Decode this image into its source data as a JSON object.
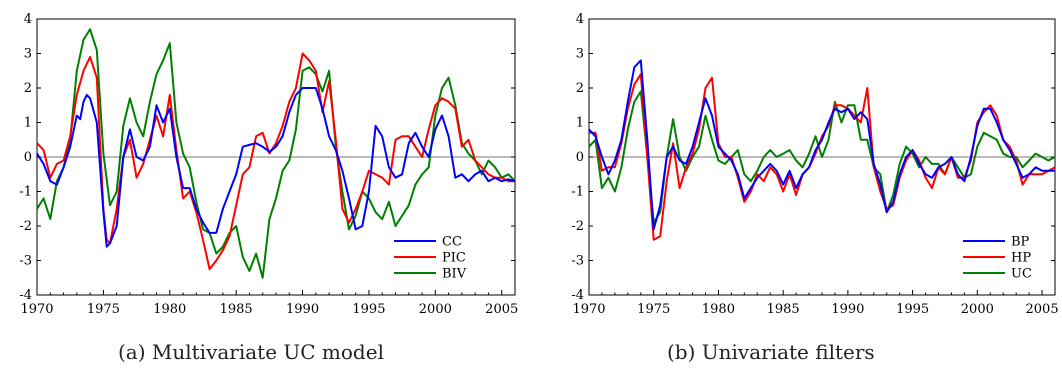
{
  "captions": [
    "(a)  Multivariate UC model",
    "(b)  Univariate filters"
  ],
  "chart_data": [
    {
      "type": "line",
      "xlim": [
        1970,
        2006
      ],
      "ylim": [
        -4,
        4
      ],
      "xticks": [
        1970,
        1975,
        1980,
        1985,
        1990,
        1995,
        2000,
        2005
      ],
      "yticks": [
        4,
        3,
        2,
        1,
        0,
        -1,
        -2,
        -3,
        -4
      ],
      "zero_line": true,
      "grid": false,
      "legend_position": "bottom-right",
      "series": [
        {
          "name": "CC",
          "color": "#0000ff",
          "x": [
            1970,
            1970.5,
            1971,
            1971.5,
            1972,
            1972.5,
            1973,
            1973.25,
            1973.5,
            1973.75,
            1974,
            1974.5,
            1975,
            1975.25,
            1975.5,
            1976,
            1976.5,
            1977,
            1977.5,
            1978,
            1978.5,
            1979,
            1979.5,
            1980,
            1980.5,
            1981,
            1981.5,
            1982,
            1982.5,
            1983,
            1983.5,
            1984,
            1984.5,
            1985,
            1985.5,
            1986,
            1986.5,
            1987,
            1987.5,
            1988,
            1988.5,
            1989,
            1989.5,
            1990,
            1990.5,
            1991,
            1991.5,
            1992,
            1992.5,
            1993,
            1993.5,
            1994,
            1994.5,
            1995,
            1995.5,
            1996,
            1996.5,
            1997,
            1997.5,
            1998,
            1998.5,
            1999,
            1999.5,
            2000,
            2000.5,
            2001,
            2001.5,
            2002,
            2002.5,
            2003,
            2003.5,
            2004,
            2004.5,
            2005,
            2005.5,
            2006
          ],
          "y": [
            0.1,
            -0.2,
            -0.7,
            -0.8,
            -0.3,
            0.3,
            1.2,
            1.1,
            1.6,
            1.8,
            1.7,
            1.0,
            -1.6,
            -2.6,
            -2.5,
            -2.0,
            0.0,
            0.8,
            0.0,
            -0.1,
            0.3,
            1.5,
            1.0,
            1.4,
            0.0,
            -0.9,
            -0.9,
            -1.5,
            -1.9,
            -2.2,
            -2.2,
            -1.5,
            -1.0,
            -0.5,
            0.3,
            0.35,
            0.4,
            0.3,
            0.15,
            0.3,
            0.6,
            1.3,
            1.8,
            2.0,
            2.0,
            2.0,
            1.4,
            0.6,
            0.2,
            -0.4,
            -1.2,
            -2.1,
            -2.0,
            -1.0,
            0.9,
            0.6,
            -0.3,
            -0.6,
            -0.5,
            0.4,
            0.7,
            0.3,
            0.0,
            0.8,
            1.2,
            0.6,
            -0.6,
            -0.5,
            -0.7,
            -0.5,
            -0.4,
            -0.7,
            -0.6,
            -0.7,
            -0.65,
            -0.7
          ]
        },
        {
          "name": "PIC",
          "color": "#ff0000",
          "x": [
            1970,
            1970.5,
            1971,
            1971.5,
            1972,
            1972.5,
            1973,
            1973.5,
            1974,
            1974.5,
            1975,
            1975.25,
            1975.5,
            1976,
            1976.5,
            1977,
            1977.5,
            1978,
            1978.5,
            1979,
            1979.5,
            1980,
            1980.5,
            1981,
            1981.5,
            1982,
            1982.5,
            1983,
            1983.5,
            1984,
            1984.5,
            1985,
            1985.5,
            1986,
            1986.5,
            1987,
            1987.5,
            1988,
            1988.5,
            1989,
            1989.5,
            1990,
            1990.5,
            1991,
            1991.5,
            1992,
            1992.5,
            1993,
            1993.5,
            1994,
            1994.5,
            1995,
            1995.5,
            1996,
            1996.5,
            1997,
            1997.5,
            1998,
            1998.5,
            1999,
            1999.5,
            2000,
            2000.5,
            2001,
            2001.5,
            2002,
            2002.5,
            2003,
            2003.5,
            2004,
            2004.5,
            2005,
            2005.5,
            2006
          ],
          "y": [
            0.4,
            0.2,
            -0.6,
            -0.2,
            -0.1,
            0.6,
            1.8,
            2.5,
            2.9,
            2.3,
            -1.5,
            -2.4,
            -2.5,
            -1.5,
            0.0,
            0.5,
            -0.6,
            -0.2,
            0.5,
            1.2,
            0.6,
            1.8,
            0.2,
            -1.2,
            -1.0,
            -1.6,
            -2.4,
            -3.25,
            -3.0,
            -2.7,
            -2.3,
            -1.4,
            -0.5,
            -0.3,
            0.6,
            0.7,
            0.1,
            0.4,
            0.9,
            1.6,
            2.0,
            3.0,
            2.8,
            2.5,
            1.3,
            2.2,
            0.5,
            -1.5,
            -1.9,
            -1.5,
            -1.0,
            -0.4,
            -0.5,
            -0.6,
            -0.8,
            0.5,
            0.6,
            0.6,
            0.3,
            0.0,
            0.8,
            1.5,
            1.7,
            1.6,
            1.4,
            0.3,
            0.5,
            -0.1,
            -0.3,
            -0.5,
            -0.6,
            -0.6,
            -0.7,
            -0.7
          ]
        },
        {
          "name": "BIV",
          "color": "#008000",
          "x": [
            1970,
            1970.5,
            1971,
            1971.5,
            1972,
            1972.5,
            1973,
            1973.5,
            1974,
            1974.5,
            1975,
            1975.5,
            1976,
            1976.5,
            1977,
            1977.5,
            1978,
            1978.5,
            1979,
            1979.5,
            1980,
            1980.5,
            1981,
            1981.5,
            1982,
            1982.5,
            1983,
            1983.5,
            1984,
            1984.5,
            1985,
            1985.5,
            1986,
            1986.5,
            1987,
            1987.5,
            1988,
            1988.5,
            1989,
            1989.5,
            1990,
            1990.5,
            1991,
            1991.5,
            1992,
            1992.5,
            1993,
            1993.5,
            1994,
            1994.5,
            1995,
            1995.5,
            1996,
            1996.5,
            1997,
            1997.5,
            1998,
            1998.5,
            1999,
            1999.5,
            2000,
            2000.5,
            2001,
            2001.5,
            2002,
            2002.5,
            2003,
            2003.5,
            2004,
            2004.5,
            2005,
            2005.5,
            2006
          ],
          "y": [
            -1.5,
            -1.2,
            -1.8,
            -0.7,
            -0.3,
            0.5,
            2.5,
            3.4,
            3.7,
            3.1,
            0.1,
            -1.4,
            -1.0,
            0.9,
            1.7,
            1.0,
            0.6,
            1.6,
            2.4,
            2.8,
            3.3,
            1.0,
            0.1,
            -0.3,
            -1.3,
            -2.1,
            -2.2,
            -2.8,
            -2.6,
            -2.2,
            -2.0,
            -2.9,
            -3.3,
            -2.8,
            -3.5,
            -1.8,
            -1.2,
            -0.4,
            -0.1,
            0.8,
            2.5,
            2.6,
            2.4,
            1.9,
            2.5,
            0.3,
            -1.0,
            -2.1,
            -1.7,
            -1.0,
            -1.2,
            -1.6,
            -1.8,
            -1.3,
            -2.0,
            -1.7,
            -1.4,
            -0.8,
            -0.5,
            -0.3,
            1.2,
            2.0,
            2.3,
            1.5,
            0.4,
            0.1,
            -0.1,
            -0.5,
            -0.1,
            -0.3,
            -0.6,
            -0.5,
            -0.7
          ]
        }
      ]
    },
    {
      "type": "line",
      "xlim": [
        1970,
        2006
      ],
      "ylim": [
        -4,
        4
      ],
      "xticks": [
        1970,
        1975,
        1980,
        1985,
        1990,
        1995,
        2000,
        2005
      ],
      "yticks": [
        4,
        3,
        2,
        1,
        0,
        -1,
        -2,
        -3,
        -4
      ],
      "zero_line": true,
      "grid": false,
      "legend_position": "bottom-right",
      "series": [
        {
          "name": "BP",
          "color": "#0000ff",
          "x": [
            1970,
            1970.5,
            1971,
            1971.5,
            1972,
            1972.5,
            1973,
            1973.5,
            1974,
            1974.5,
            1975,
            1975.5,
            1976,
            1976.5,
            1977,
            1977.5,
            1978,
            1978.5,
            1979,
            1979.5,
            1980,
            1980.5,
            1981,
            1981.5,
            1982,
            1982.5,
            1983,
            1983.5,
            1984,
            1984.5,
            1985,
            1985.5,
            1986,
            1986.5,
            1987,
            1987.5,
            1988,
            1988.5,
            1989,
            1989.5,
            1990,
            1990.5,
            1991,
            1991.5,
            1992,
            1992.5,
            1993,
            1993.5,
            1994,
            1994.5,
            1995,
            1995.5,
            1996,
            1996.5,
            1997,
            1997.5,
            1998,
            1998.5,
            1999,
            1999.5,
            2000,
            2000.5,
            2001,
            2001.5,
            2002,
            2002.5,
            2003,
            2003.5,
            2004,
            2004.5,
            2005,
            2005.5,
            2006
          ],
          "y": [
            0.8,
            0.6,
            0.0,
            -0.5,
            -0.1,
            0.5,
            1.6,
            2.6,
            2.8,
            0.5,
            -2.1,
            -1.4,
            0.0,
            0.3,
            -0.1,
            -0.2,
            0.3,
            1.0,
            1.7,
            1.2,
            0.3,
            0.1,
            -0.1,
            -0.5,
            -1.2,
            -0.9,
            -0.6,
            -0.4,
            -0.2,
            -0.4,
            -0.8,
            -0.4,
            -0.9,
            -0.5,
            -0.3,
            0.2,
            0.5,
            1.0,
            1.4,
            1.3,
            1.4,
            1.1,
            1.3,
            1.1,
            -0.2,
            -0.8,
            -1.6,
            -1.3,
            -0.5,
            0.0,
            0.2,
            -0.2,
            -0.5,
            -0.6,
            -0.3,
            -0.2,
            0.0,
            -0.5,
            -0.7,
            0.0,
            0.9,
            1.4,
            1.4,
            1.0,
            0.5,
            0.2,
            -0.2,
            -0.6,
            -0.5,
            -0.3,
            -0.4,
            -0.4,
            -0.4
          ]
        },
        {
          "name": "HP",
          "color": "#ff0000",
          "x": [
            1970,
            1970.5,
            1971,
            1971.5,
            1972,
            1972.5,
            1973,
            1973.5,
            1974,
            1974.5,
            1975,
            1975.5,
            1976,
            1976.5,
            1977,
            1977.5,
            1978,
            1978.5,
            1979,
            1979.5,
            1980,
            1980.5,
            1981,
            1981.5,
            1982,
            1982.5,
            1983,
            1983.5,
            1984,
            1984.5,
            1985,
            1985.5,
            1986,
            1986.5,
            1987,
            1987.5,
            1988,
            1988.5,
            1989,
            1989.5,
            1990,
            1990.5,
            1991,
            1991.5,
            1992,
            1992.5,
            1993,
            1993.5,
            1994,
            1994.5,
            1995,
            1995.5,
            1996,
            1996.5,
            1997,
            1997.5,
            1998,
            1998.5,
            1999,
            1999.5,
            2000,
            2000.5,
            2001,
            2001.5,
            2002,
            2002.5,
            2003,
            2003.5,
            2004,
            2004.5,
            2005,
            2005.5,
            2006
          ],
          "y": [
            0.7,
            0.7,
            -0.4,
            -0.3,
            -0.3,
            0.4,
            1.4,
            2.1,
            2.4,
            0.0,
            -2.4,
            -2.3,
            -0.7,
            0.4,
            -0.9,
            -0.3,
            0.1,
            0.8,
            2.0,
            2.3,
            0.4,
            0.0,
            0.0,
            -0.6,
            -1.3,
            -1.0,
            -0.5,
            -0.7,
            -0.3,
            -0.5,
            -1.0,
            -0.5,
            -1.1,
            -0.5,
            -0.3,
            0.1,
            0.6,
            0.9,
            1.5,
            1.5,
            1.4,
            1.2,
            1.0,
            2.0,
            -0.3,
            -1.0,
            -1.5,
            -1.4,
            -0.6,
            -0.1,
            0.2,
            -0.1,
            -0.6,
            -0.9,
            -0.3,
            -0.5,
            0.0,
            -0.6,
            -0.6,
            -0.1,
            1.0,
            1.3,
            1.5,
            1.2,
            0.5,
            0.3,
            -0.1,
            -0.8,
            -0.5,
            -0.5,
            -0.5,
            -0.4,
            -0.3
          ]
        },
        {
          "name": "UC",
          "color": "#008000",
          "x": [
            1970,
            1970.5,
            1971,
            1971.5,
            1972,
            1972.5,
            1973,
            1973.5,
            1974,
            1974.5,
            1975,
            1975.5,
            1976,
            1976.5,
            1977,
            1977.5,
            1978,
            1978.5,
            1979,
            1979.5,
            1980,
            1980.5,
            1981,
            1981.5,
            1982,
            1982.5,
            1983,
            1983.5,
            1984,
            1984.5,
            1985,
            1985.5,
            1986,
            1986.5,
            1987,
            1987.5,
            1988,
            1988.5,
            1989,
            1989.5,
            1990,
            1990.5,
            1991,
            1991.5,
            1992,
            1992.5,
            1993,
            1993.5,
            1994,
            1994.5,
            1995,
            1995.5,
            1996,
            1996.5,
            1997,
            1997.5,
            1998,
            1998.5,
            1999,
            1999.5,
            2000,
            2000.5,
            2001,
            2001.5,
            2002,
            2002.5,
            2003,
            2003.5,
            2004,
            2004.5,
            2005,
            2005.5,
            2006
          ],
          "y": [
            0.3,
            0.5,
            -0.9,
            -0.6,
            -1.0,
            -0.3,
            0.8,
            1.6,
            1.9,
            0.0,
            -1.9,
            -1.6,
            0.0,
            1.1,
            0.0,
            -0.4,
            0.0,
            0.3,
            1.2,
            0.5,
            -0.1,
            -0.2,
            0.0,
            0.2,
            -0.5,
            -0.7,
            -0.4,
            0.0,
            0.2,
            0.0,
            0.1,
            0.2,
            -0.1,
            -0.3,
            0.1,
            0.6,
            0.0,
            0.5,
            1.6,
            1.0,
            1.5,
            1.5,
            0.5,
            0.5,
            -0.3,
            -0.5,
            -1.6,
            -1.1,
            -0.2,
            0.3,
            0.1,
            -0.3,
            0.0,
            -0.2,
            -0.2,
            -0.5,
            0.0,
            -0.3,
            -0.6,
            -0.5,
            0.3,
            0.7,
            0.6,
            0.5,
            0.1,
            0.0,
            0.0,
            -0.3,
            -0.1,
            0.1,
            0.0,
            -0.1,
            0.0
          ]
        }
      ]
    }
  ]
}
